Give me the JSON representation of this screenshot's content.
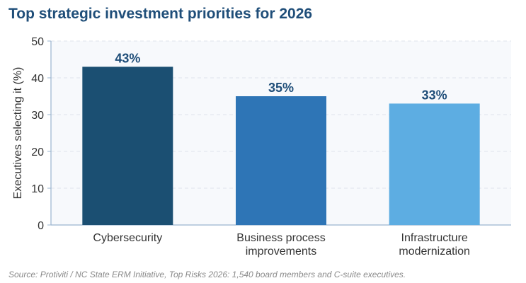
{
  "chart_data": {
    "type": "bar",
    "title": "Top strategic investment priorities for 2026",
    "categories": [
      [
        "Cybersecurity"
      ],
      [
        "Business process",
        "improvements"
      ],
      [
        "Infrastructure",
        "modernization"
      ]
    ],
    "values": [
      43,
      35,
      33
    ],
    "value_labels": [
      "43%",
      "35%",
      "33%"
    ],
    "bar_colors": [
      "#1b4f72",
      "#2e75b6",
      "#5dade2"
    ],
    "ylabel": "Executives selecting it (%)",
    "xlabel": "",
    "ylim": [
      0,
      50
    ],
    "yticks": [
      "0",
      "10",
      "20",
      "30",
      "40",
      "50"
    ],
    "grid": true,
    "legend": "none"
  },
  "source": "Source: Protiviti / NC State ERM Initiative, Top Risks 2026: 1,540 board members and C-suite executives.",
  "colors": {
    "title": "#1f4e79",
    "plot_background": "#f7f9fc",
    "grid": "#dfe4ec",
    "axis": "#9ab4cf",
    "value_label": "#1f4e79",
    "source_text": "#8a8a8a"
  }
}
